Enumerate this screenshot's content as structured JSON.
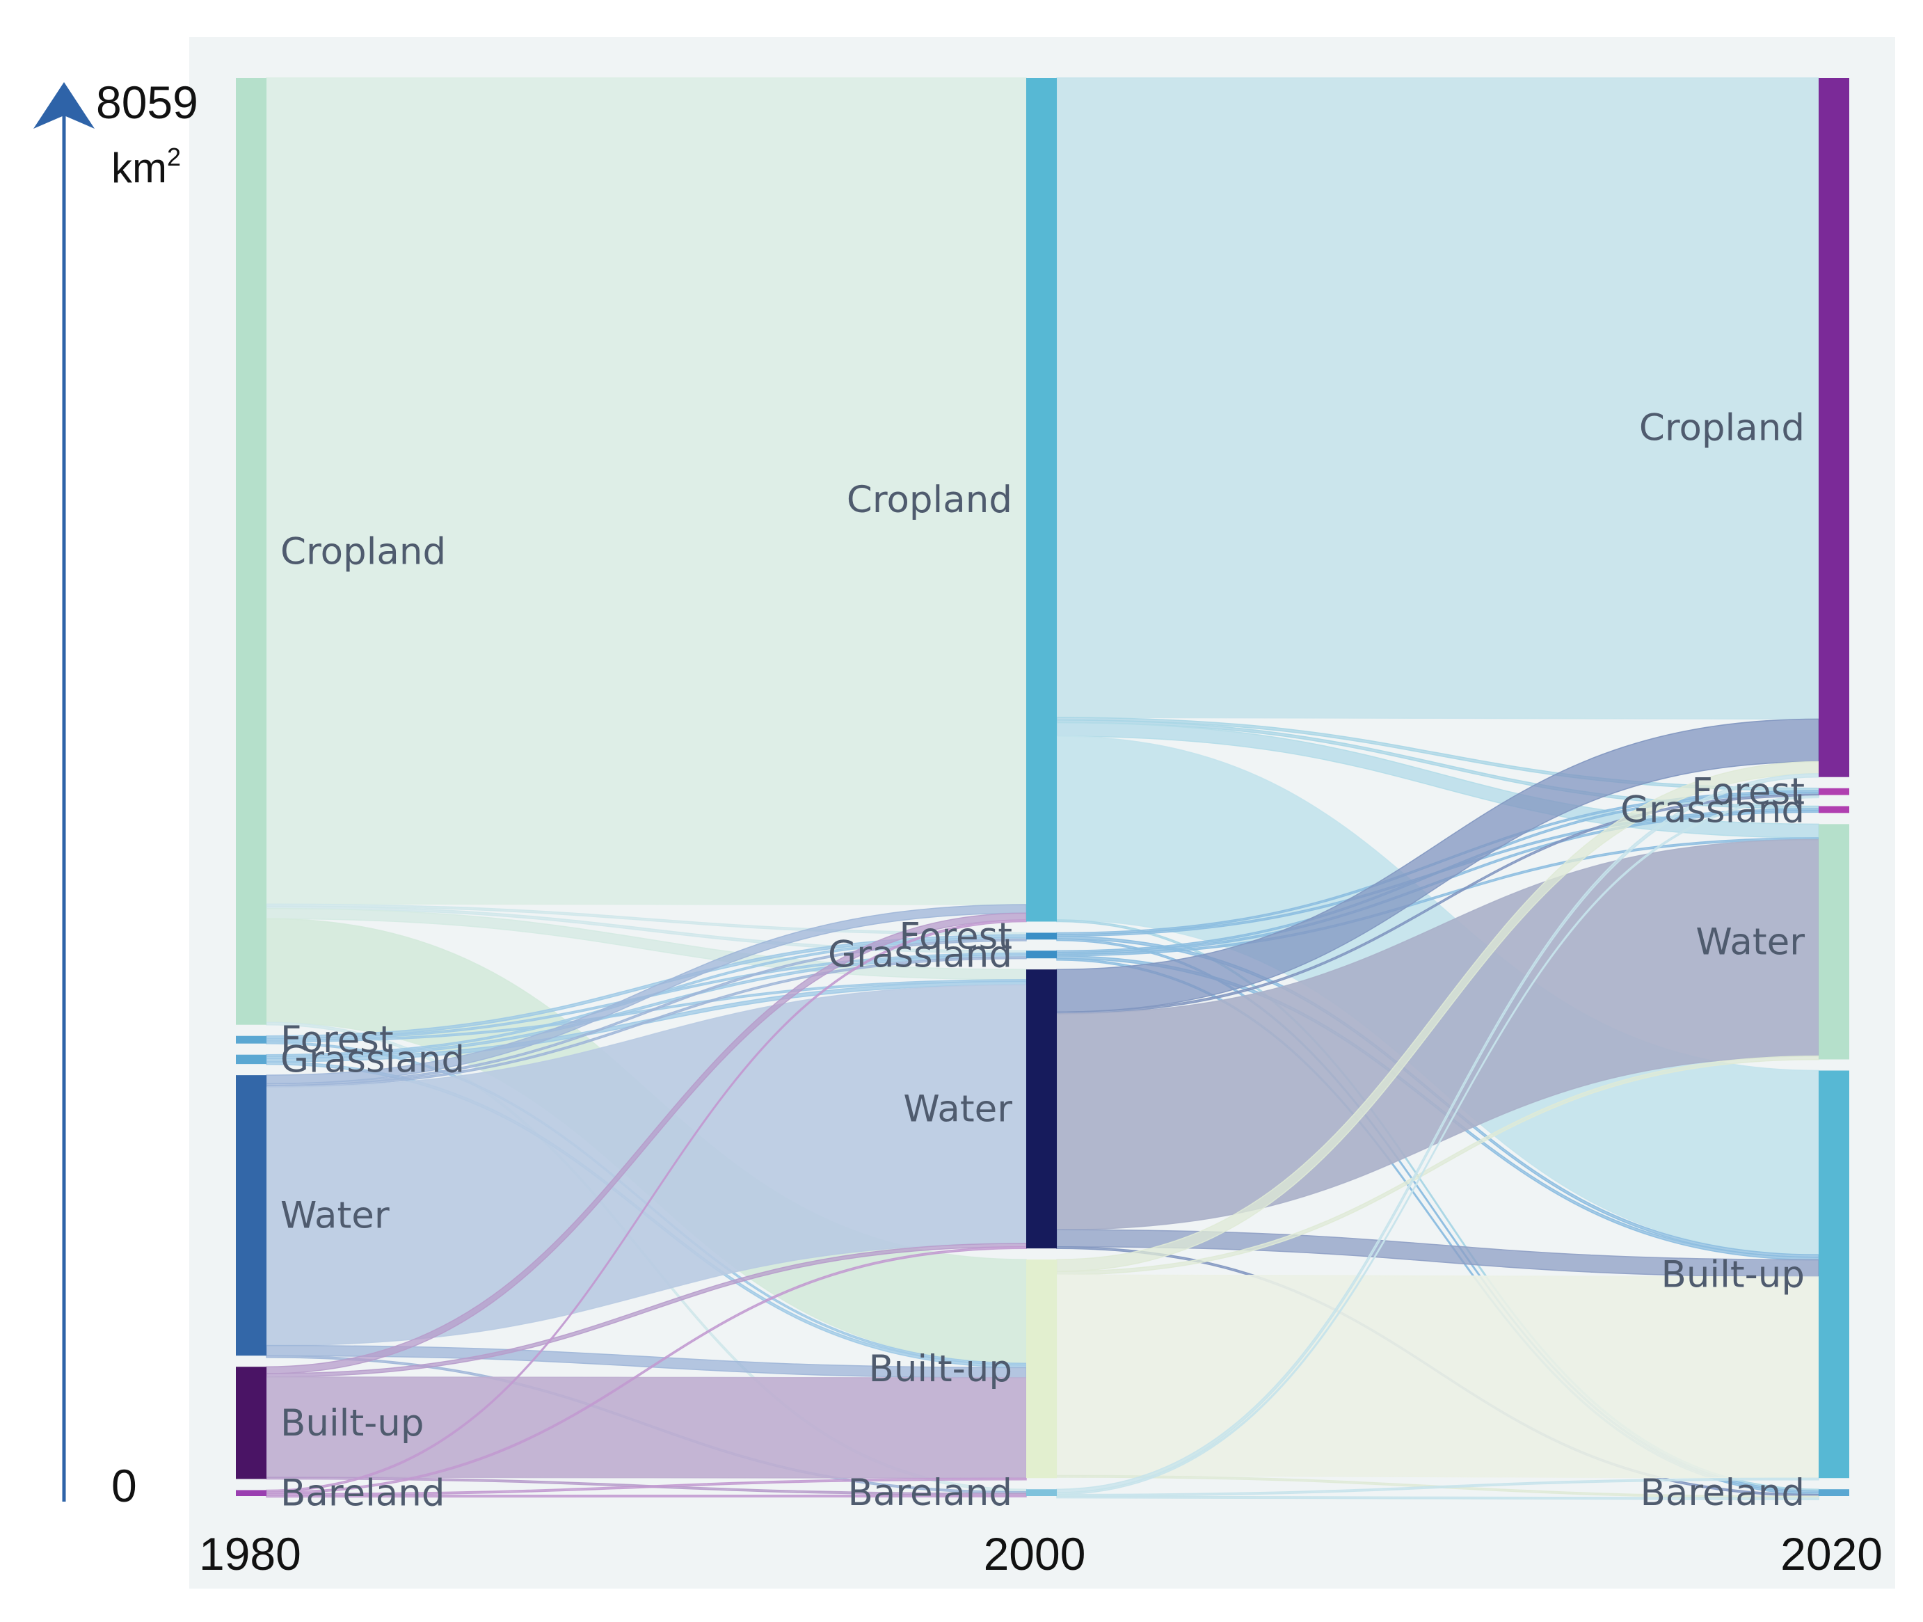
{
  "chart_data": {
    "type": "sankey",
    "title": "",
    "unit": "km",
    "unit_superscript": "2",
    "axis_max_label": "8059",
    "axis_min_label": "0",
    "axis_max_value": 8059,
    "axis_min_value": 0,
    "years": [
      "1980",
      "2000",
      "2020"
    ],
    "columns": [
      {
        "year": "1980",
        "nodes": [
          {
            "id": "c1980",
            "label": "Cropland",
            "value": 5570,
            "color": "#b5e0cb"
          },
          {
            "id": "f1980",
            "label": "Forest",
            "value": 45,
            "color": "#5aa7d2"
          },
          {
            "id": "g1980",
            "label": "Grassland",
            "value": 55,
            "color": "#5aa7d2"
          },
          {
            "id": "w1980",
            "label": "Water",
            "value": 1650,
            "color": "#3367a8"
          },
          {
            "id": "b1980",
            "label": "Built-up",
            "value": 660,
            "color": "#4a1465"
          },
          {
            "id": "br1980",
            "label": "Bareland",
            "value": 35,
            "color": "#9a3fb0"
          }
        ]
      },
      {
        "year": "2000",
        "nodes": [
          {
            "id": "c2000",
            "label": "Cropland",
            "value": 4960,
            "color": "#57b8d4"
          },
          {
            "id": "f2000",
            "label": "Forest",
            "value": 40,
            "color": "#3b8fc6"
          },
          {
            "id": "g2000",
            "label": "Grassland",
            "value": 45,
            "color": "#3b8fc6"
          },
          {
            "id": "w2000",
            "label": "Water",
            "value": 1640,
            "color": "#161b5c"
          },
          {
            "id": "b2000",
            "label": "Built-up",
            "value": 1285,
            "color": "#e2efcf"
          },
          {
            "id": "br2000",
            "label": "Bareland",
            "value": 40,
            "color": "#7fc2dc"
          }
        ]
      },
      {
        "year": "2020",
        "nodes": [
          {
            "id": "c2020",
            "label": "Cropland",
            "value": 4100,
            "color": "#7b2a98"
          },
          {
            "id": "f2020",
            "label": "Forest",
            "value": 40,
            "color": "#b03fb0"
          },
          {
            "id": "g2020",
            "label": "Grassland",
            "value": 40,
            "color": "#b03fb0"
          },
          {
            "id": "w2020",
            "label": "Water",
            "value": 1380,
            "color": "#b5e0cb"
          },
          {
            "id": "b2020",
            "label": "Built-up",
            "value": 2390,
            "color": "#57b8d4"
          },
          {
            "id": "br2020",
            "label": "Bareland",
            "value": 40,
            "color": "#5aa7d2"
          }
        ]
      }
    ],
    "links": [
      {
        "source": "c1980",
        "target": "c2000",
        "value": 4860,
        "color": "#dcede6"
      },
      {
        "source": "c1980",
        "target": "f2000",
        "value": 12,
        "color": "#cfe7ea"
      },
      {
        "source": "c1980",
        "target": "g2000",
        "value": 14,
        "color": "#cfe7ea"
      },
      {
        "source": "c1980",
        "target": "w2000",
        "value": 60,
        "color": "#d4eae2"
      },
      {
        "source": "c1980",
        "target": "b2000",
        "value": 610,
        "color": "#d4eadc"
      },
      {
        "source": "c1980",
        "target": "br2000",
        "value": 14,
        "color": "#cfe7ea"
      },
      {
        "source": "f1980",
        "target": "f2000",
        "value": 15,
        "color": "#9ec9e6"
      },
      {
        "source": "f1980",
        "target": "g2000",
        "value": 10,
        "color": "#9ec9e6"
      },
      {
        "source": "f1980",
        "target": "w2000",
        "value": 10,
        "color": "#9ec9e6"
      },
      {
        "source": "f1980",
        "target": "b2000",
        "value": 10,
        "color": "#9ec9e6"
      },
      {
        "source": "g1980",
        "target": "f2000",
        "value": 8,
        "color": "#9ec9e6"
      },
      {
        "source": "g1980",
        "target": "g2000",
        "value": 12,
        "color": "#9ec9e6"
      },
      {
        "source": "g1980",
        "target": "w2000",
        "value": 20,
        "color": "#9ec9e6"
      },
      {
        "source": "g1980",
        "target": "b2000",
        "value": 15,
        "color": "#9ec9e6"
      },
      {
        "source": "w1980",
        "target": "c2000",
        "value": 50,
        "color": "#9fb6d8"
      },
      {
        "source": "w1980",
        "target": "f2000",
        "value": 5,
        "color": "#9fb6d8"
      },
      {
        "source": "w1980",
        "target": "g2000",
        "value": 5,
        "color": "#9fb6d8"
      },
      {
        "source": "w1980",
        "target": "w2000",
        "value": 1520,
        "color": "#b9cbe2"
      },
      {
        "source": "w1980",
        "target": "b2000",
        "value": 60,
        "color": "#9fb6d8"
      },
      {
        "source": "w1980",
        "target": "br2000",
        "value": 10,
        "color": "#9fb6d8"
      },
      {
        "source": "b1980",
        "target": "c2000",
        "value": 40,
        "color": "#b79ccb"
      },
      {
        "source": "b1980",
        "target": "w2000",
        "value": 20,
        "color": "#b79ccb"
      },
      {
        "source": "b1980",
        "target": "b2000",
        "value": 590,
        "color": "#bfaed0"
      },
      {
        "source": "b1980",
        "target": "br2000",
        "value": 10,
        "color": "#b79ccb"
      },
      {
        "source": "br1980",
        "target": "c2000",
        "value": 10,
        "color": "#c29ad0"
      },
      {
        "source": "br1980",
        "target": "w2000",
        "value": 10,
        "color": "#c29ad0"
      },
      {
        "source": "br1980",
        "target": "b2000",
        "value": 0,
        "color": "#c29ad0"
      },
      {
        "source": "br1980",
        "target": "br2000",
        "value": 6,
        "color": "#c29ad0"
      },
      {
        "source": "c2000",
        "target": "c2020",
        "value": 3760,
        "color": "#c6e3eb"
      },
      {
        "source": "c2000",
        "target": "f2020",
        "value": 15,
        "color": "#a9d6e6"
      },
      {
        "source": "c2000",
        "target": "g2020",
        "value": 15,
        "color": "#a9d6e6"
      },
      {
        "source": "c2000",
        "target": "w2020",
        "value": 80,
        "color": "#b3dbe8"
      },
      {
        "source": "c2000",
        "target": "b2020",
        "value": 1080,
        "color": "#c3e3ec"
      },
      {
        "source": "c2000",
        "target": "br2020",
        "value": 10,
        "color": "#a9d6e6"
      },
      {
        "source": "f2000",
        "target": "f2020",
        "value": 10,
        "color": "#8cbde0"
      },
      {
        "source": "f2000",
        "target": "g2020",
        "value": 10,
        "color": "#8cbde0"
      },
      {
        "source": "f2000",
        "target": "b2020",
        "value": 15,
        "color": "#8cbde0"
      },
      {
        "source": "f2000",
        "target": "br2020",
        "value": 5,
        "color": "#8cbde0"
      },
      {
        "source": "g2000",
        "target": "f2020",
        "value": 5,
        "color": "#8cbde0"
      },
      {
        "source": "g2000",
        "target": "g2020",
        "value": 10,
        "color": "#8cbde0"
      },
      {
        "source": "g2000",
        "target": "w2020",
        "value": 10,
        "color": "#8cbde0"
      },
      {
        "source": "g2000",
        "target": "b2020",
        "value": 15,
        "color": "#8cbde0"
      },
      {
        "source": "g2000",
        "target": "br2020",
        "value": 5,
        "color": "#8cbde0"
      },
      {
        "source": "w2000",
        "target": "c2020",
        "value": 250,
        "color": "#8196c0"
      },
      {
        "source": "w2000",
        "target": "f2020",
        "value": 10,
        "color": "#8196c0"
      },
      {
        "source": "w2000",
        "target": "w2020",
        "value": 1270,
        "color": "#aab0c9"
      },
      {
        "source": "w2000",
        "target": "b2020",
        "value": 100,
        "color": "#8e9fc4"
      },
      {
        "source": "w2000",
        "target": "br2020",
        "value": 10,
        "color": "#8196c0"
      },
      {
        "source": "b2000",
        "target": "c2020",
        "value": 70,
        "color": "#dfead6"
      },
      {
        "source": "b2000",
        "target": "w2020",
        "value": 20,
        "color": "#dfead6"
      },
      {
        "source": "b2000",
        "target": "b2020",
        "value": 1180,
        "color": "#ebf1e6"
      },
      {
        "source": "b2000",
        "target": "br2020",
        "value": 10,
        "color": "#dfead6"
      },
      {
        "source": "br2000",
        "target": "c2020",
        "value": 20,
        "color": "#c6e3eb"
      },
      {
        "source": "br2000",
        "target": "f2020",
        "value": 10,
        "color": "#c6e3eb"
      },
      {
        "source": "br2000",
        "target": "b2020",
        "value": 0,
        "color": "#c6e3eb"
      },
      {
        "source": "br2000",
        "target": "br2020",
        "value": 10,
        "color": "#c6e3eb"
      }
    ]
  }
}
